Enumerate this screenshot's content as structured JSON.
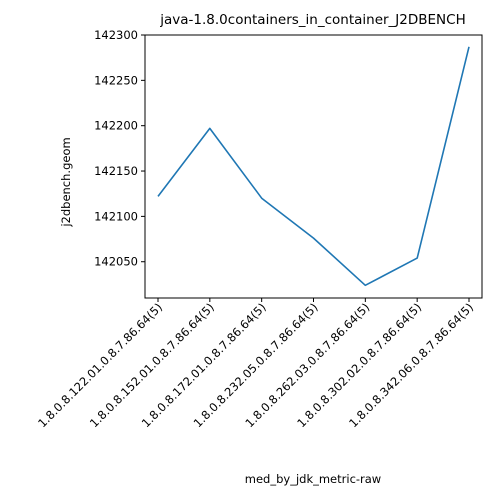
{
  "chart_data": {
    "type": "line",
    "title": "java-1.8.0containers_in_container_J2DBENCH",
    "xlabel": "med_by_jdk_metric-raw",
    "ylabel": "j2dbench.geom",
    "categories": [
      "1.8.0.8.122.01.0.8.7.86.64(5)",
      "1.8.0.8.152.01.0.8.7.86.64(5)",
      "1.8.0.8.172.01.0.8.7.86.64(5)",
      "1.8.0.8.232.05.0.8.7.86.64(5)",
      "1.8.0.8.262.03.0.8.7.86.64(5)",
      "1.8.0.8.302.02.0.8.7.86.64(5)",
      "1.8.0.8.342.06.0.8.7.86.64(5)"
    ],
    "series": [
      {
        "values": [
          142122,
          142197,
          142120,
          142076,
          142024,
          142054,
          142287
        ]
      }
    ],
    "yticks": [
      142050,
      142100,
      142150,
      142200,
      142250,
      142300
    ],
    "ytick_labels": [
      "142050",
      "142100",
      "142150",
      "142200",
      "142250",
      "142300"
    ],
    "ylim": [
      142010,
      142300
    ],
    "grid": false,
    "color": "#1f77b4"
  }
}
